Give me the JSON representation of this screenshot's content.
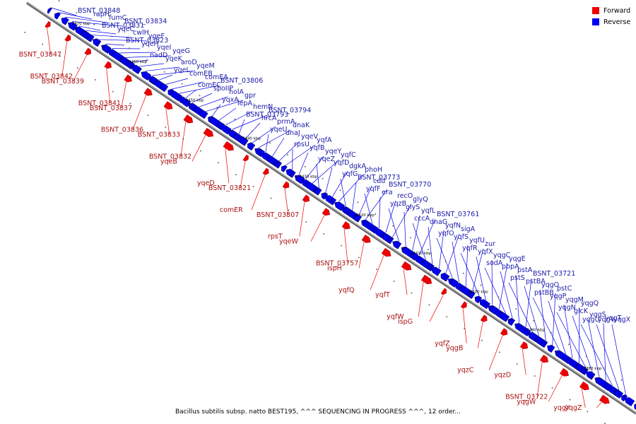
{
  "legend": {
    "forward": {
      "label": "Forward",
      "color": "#ee0000"
    },
    "reverse": {
      "label": "Reverse",
      "color": "#0000ee"
    }
  },
  "caption": "Bacillus subtilis subsp. natto BEST195, ^^^ SEQUENCING IN PROGRESS ^^^, 12 order...",
  "ticks": [
    "2470 kbp",
    "2460 kbp",
    "2450 kbp",
    "2440 kbp",
    "2430 kbp",
    "2420 kbp",
    "2410 kbp",
    "2400 kbp",
    "2390 kbp",
    "2380 kbp",
    "2370 kbp"
  ],
  "genes": {
    "reverse": [
      "BSNT_03848",
      "rapH",
      "fumC",
      "BSNT_03834",
      "BSNT_03831",
      "yqeC",
      "cwlH",
      "yqeF",
      "BSNT_03823",
      "yqeH",
      "yqeI",
      "yqeG",
      "nadD",
      "yqeK",
      "aroD",
      "yqeM",
      "yqeL",
      "comEB",
      "comEA",
      "BSNT_03806",
      "comEC",
      "spoIIP",
      "holA",
      "gpr",
      "yqxA",
      "lepA",
      "hemN",
      "BSNT_03794",
      "BSNT_03793",
      "hrcA",
      "prmA",
      "dnaK",
      "yqeU",
      "dnaJ",
      "yqeV",
      "yqfA",
      "rpsU",
      "yqfB",
      "yqeY",
      "yqfC",
      "yqeZ",
      "yqfD",
      "dgkA",
      "phoH",
      "yqfG",
      "BSNT_03773",
      "cdd",
      "BSNT_03770",
      "yqfF",
      "era",
      "recO",
      "glyQ",
      "yqzB",
      "glyS",
      "yqfL",
      "BSNT_03761",
      "cccA",
      "dnaG",
      "yqfN",
      "sigA",
      "yqfO",
      "yqfS",
      "yqfU",
      "zur",
      "yqfR",
      "yqfX",
      "yqgC",
      "yqgE",
      "sodA",
      "pbpA",
      "pstA",
      "BSNT_03721",
      "pstS",
      "pstBA",
      "yqgO",
      "pstC",
      "pstBB",
      "yqgP",
      "yqgM",
      "yqgQ",
      "yqgN",
      "glcK",
      "yqgS",
      "yqgT",
      "yqgU",
      "yqgV",
      "yqgX"
    ],
    "forward": [
      "BSNT_03847",
      "BSNT_03842",
      "BSNT_03839",
      "BSNT_03841",
      "BSNT_03837",
      "BSNT_03836",
      "BSNT_03833",
      "BSNT_03832",
      "yqeB",
      "yqeD",
      "BSNT_03821",
      "comER",
      "BSNT_03807",
      "rpsT",
      "yqeW",
      "BSNT_03757",
      "ispH",
      "yqfQ",
      "yqfT",
      "yqfW",
      "ispG",
      "yqfZ",
      "yqgB",
      "yqzC",
      "yqzD",
      "BSNT_03722",
      "yqgW",
      "yqgY",
      "yqgZ"
    ]
  }
}
